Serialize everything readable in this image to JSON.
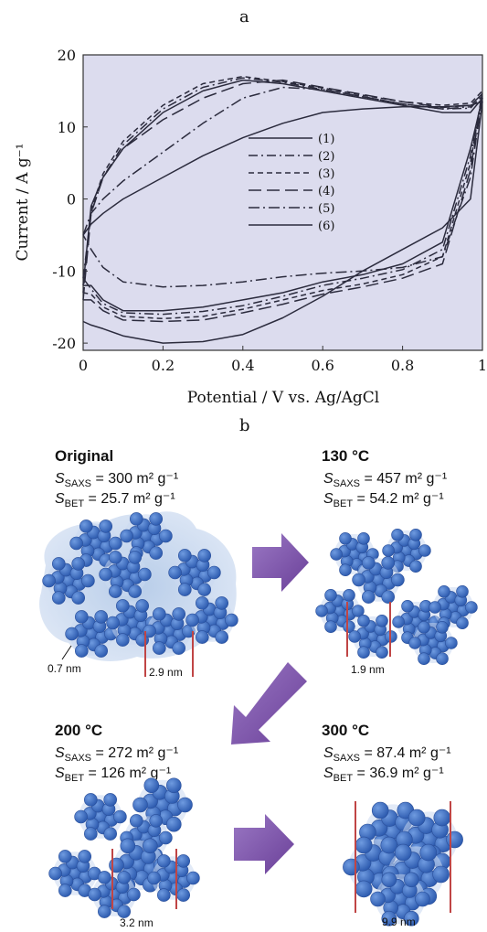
{
  "panels": {
    "a": "a",
    "b": "b"
  },
  "chart_data": {
    "type": "line",
    "xlabel": "Potential / V vs. Ag/AgCl",
    "ylabel": "Current / A g⁻¹",
    "xlim": [
      0,
      1
    ],
    "ylim": [
      -21,
      20
    ],
    "xticks": [
      "0",
      "0.2",
      "0.4",
      "0.6",
      "0.8",
      "1"
    ],
    "yticks": [
      "-20",
      "-10",
      "0",
      "10",
      "20"
    ],
    "legend_position": "center-right",
    "colors": {
      "background": "#dcdcee",
      "line": "#2b2b3d"
    },
    "series": [
      {
        "name": "(1)",
        "dash": "none",
        "x": [
          0,
          0.02,
          0.05,
          0.1,
          0.2,
          0.3,
          0.4,
          0.5,
          0.6,
          0.7,
          0.8,
          0.9,
          0.97,
          1.0,
          0.97,
          0.9,
          0.8,
          0.7,
          0.6,
          0.5,
          0.4,
          0.3,
          0.2,
          0.1,
          0.05,
          0.02,
          0
        ],
        "y": [
          -12,
          -1,
          3,
          7,
          12,
          15,
          16.5,
          16,
          15,
          14,
          13,
          12,
          12,
          14,
          7,
          -6,
          -9,
          -10.5,
          -11.5,
          -13,
          -14,
          -15,
          -15.5,
          -15.5,
          -14,
          -12,
          -12
        ]
      },
      {
        "name": "(2)",
        "dash": "10 4 2 4",
        "x": [
          0,
          0.02,
          0.05,
          0.1,
          0.2,
          0.3,
          0.4,
          0.5,
          0.6,
          0.7,
          0.8,
          0.9,
          0.97,
          1.0,
          0.97,
          0.9,
          0.8,
          0.7,
          0.6,
          0.5,
          0.4,
          0.3,
          0.2,
          0.1,
          0.05,
          0.02,
          0
        ],
        "y": [
          -11,
          -2,
          3,
          7.5,
          12.5,
          15.5,
          16.8,
          16.2,
          15.2,
          14.2,
          13.2,
          12.5,
          12.6,
          14.4,
          6,
          -7,
          -9.8,
          -11,
          -12,
          -13.5,
          -14.8,
          -15.6,
          -16,
          -15.8,
          -14.5,
          -12.5,
          -11
        ]
      },
      {
        "name": "(3)",
        "dash": "6 4",
        "x": [
          0,
          0.02,
          0.05,
          0.1,
          0.2,
          0.3,
          0.4,
          0.5,
          0.6,
          0.7,
          0.8,
          0.9,
          0.97,
          1.0,
          0.97,
          0.9,
          0.8,
          0.7,
          0.6,
          0.5,
          0.4,
          0.3,
          0.2,
          0.1,
          0.05,
          0.02,
          0
        ],
        "y": [
          -13,
          -1.5,
          3.5,
          8,
          13,
          16,
          17,
          16.3,
          15.4,
          14.4,
          13.5,
          13,
          13.3,
          15,
          5,
          -8,
          -10.5,
          -11.8,
          -12.7,
          -14,
          -15.3,
          -16.3,
          -16.6,
          -16.3,
          -15,
          -13.2,
          -13
        ]
      },
      {
        "name": "(4)",
        "dash": "14 6",
        "x": [
          0,
          0.02,
          0.05,
          0.1,
          0.2,
          0.3,
          0.4,
          0.5,
          0.6,
          0.7,
          0.8,
          0.9,
          0.97,
          1.0,
          0.97,
          0.9,
          0.8,
          0.7,
          0.6,
          0.5,
          0.4,
          0.3,
          0.2,
          0.1,
          0.05,
          0.02,
          0
        ],
        "y": [
          -14,
          -2,
          3,
          7,
          11,
          14,
          16,
          16.5,
          15.5,
          14.5,
          13.5,
          12.7,
          13,
          14.6,
          4,
          -9,
          -11,
          -12.2,
          -13.2,
          -14.6,
          -15.8,
          -16.8,
          -17,
          -16.8,
          -15.5,
          -14,
          -14
        ]
      },
      {
        "name": "(5)",
        "dash": "12 4 2 4",
        "x": [
          0,
          0.02,
          0.05,
          0.1,
          0.2,
          0.3,
          0.4,
          0.5,
          0.6,
          0.7,
          0.8,
          0.9,
          0.97,
          1.0,
          0.97,
          0.9,
          0.8,
          0.7,
          0.6,
          0.5,
          0.4,
          0.3,
          0.2,
          0.1,
          0.05,
          0.02,
          0
        ],
        "y": [
          -5,
          -2,
          0,
          2.5,
          6.5,
          10.5,
          14,
          15.5,
          15.2,
          14.2,
          13.2,
          12.5,
          12.8,
          14.2,
          3,
          -8,
          -9.5,
          -10,
          -10.3,
          -10.8,
          -11.5,
          -12,
          -12.2,
          -11.5,
          -9.5,
          -7,
          -5
        ]
      },
      {
        "name": "(6)",
        "dash": "none",
        "x": [
          0,
          0.02,
          0.05,
          0.1,
          0.2,
          0.3,
          0.4,
          0.5,
          0.6,
          0.7,
          0.8,
          0.9,
          0.97,
          1.0,
          0.97,
          0.9,
          0.8,
          0.7,
          0.6,
          0.5,
          0.4,
          0.3,
          0.2,
          0.1,
          0.05,
          0.02,
          0
        ],
        "y": [
          -5,
          -3.5,
          -2,
          0,
          3,
          6,
          8.5,
          10.5,
          12,
          12.5,
          12.8,
          12.8,
          13,
          13.5,
          0,
          -4,
          -7,
          -10,
          -13.5,
          -16.5,
          -18.8,
          -19.8,
          -20,
          -19,
          -18,
          -17.5,
          -17
        ]
      }
    ]
  },
  "diagram": {
    "arrow_color": "#7b4fa3",
    "particle_color": "#3f72c9",
    "halo_color": "#c9d8f0",
    "marker_color": "#c04545",
    "stages": [
      {
        "title": "Original",
        "saxs_sym": "S",
        "saxs_sub": "SAXS",
        "saxs_val": " = 300 m² g⁻¹",
        "bet_sym": "S",
        "bet_sub": "BET",
        "bet_val": " = 25.7 m² g⁻¹",
        "sizes": [
          "0.7 nm",
          "2.9 nm"
        ]
      },
      {
        "title": "130 °C",
        "saxs_sym": "S",
        "saxs_sub": "SAXS",
        "saxs_val": " = 457 m² g⁻¹",
        "bet_sym": "S",
        "bet_sub": "BET",
        "bet_val": "  = 54.2 m² g⁻¹",
        "sizes": [
          "1.9 nm"
        ]
      },
      {
        "title": "200 °C",
        "saxs_sym": "S",
        "saxs_sub": "SAXS",
        "saxs_val": " = 272 m² g⁻¹",
        "bet_sym": "S",
        "bet_sub": "BET",
        "bet_val": "  = 126 m² g⁻¹",
        "sizes": [
          "3.2 nm"
        ]
      },
      {
        "title": "300 °C",
        "saxs_sym": "S",
        "saxs_sub": "SAXS",
        "saxs_val": " = 87.4 m² g⁻¹",
        "bet_sym": "S",
        "bet_sub": "BET",
        "bet_val": "  = 36.9 m² g⁻¹",
        "sizes": [
          "9.9 nm"
        ]
      }
    ]
  }
}
